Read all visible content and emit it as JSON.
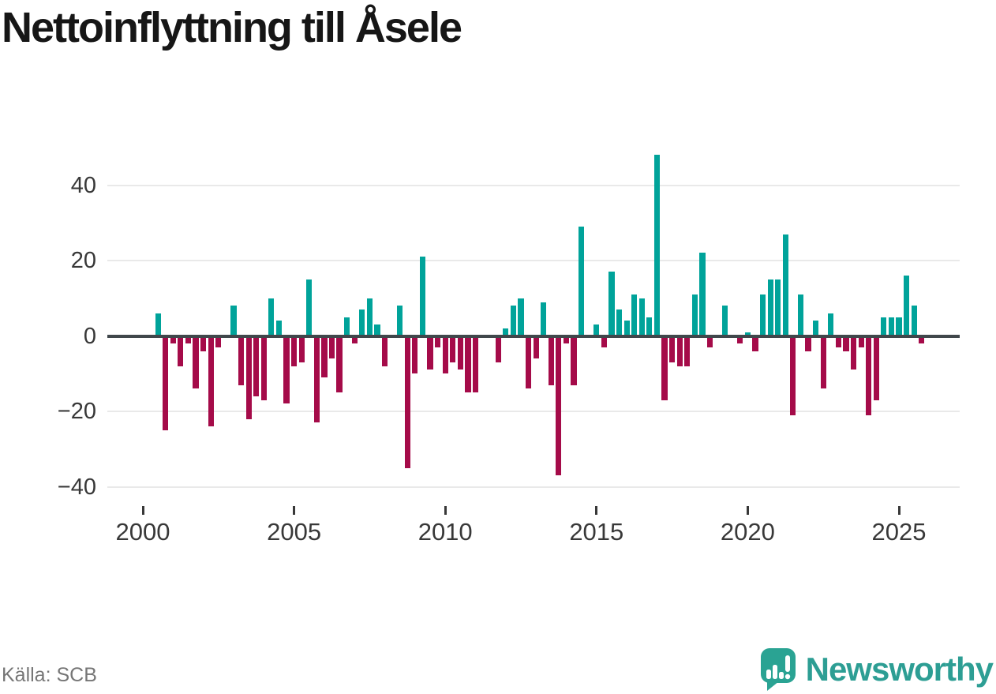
{
  "title": "Nettoinflyttning till Åsele",
  "source": "Källa: SCB",
  "brand": {
    "name": "Newsworthy"
  },
  "colors": {
    "positive_bar": "#00a39a",
    "negative_bar": "#a50b49",
    "zero_line": "#40474b",
    "gridline": "#e9e9e9",
    "axis_label": "#383838",
    "source_text": "#767676",
    "brand_teal": "#2d9e94",
    "title_text": "#161616",
    "background": "#ffffff"
  },
  "chart_data": {
    "type": "bar",
    "title": "Nettoinflyttning till Åsele",
    "x_start": "2000Q1",
    "frequency": "quarterly",
    "x_tick_labels": [
      "2000",
      "2005",
      "2010",
      "2015",
      "2020",
      "2025"
    ],
    "y_ticks": [
      40,
      20,
      0,
      -20,
      -40
    ],
    "ylim": [
      -45,
      50
    ],
    "grid": "horizontal",
    "legend": "none",
    "values": [
      0,
      0,
      6,
      -25,
      -2,
      -8,
      -2,
      -14,
      -4,
      -24,
      -3,
      0,
      8,
      -13,
      -22,
      -16,
      -17,
      10,
      4,
      -18,
      -8,
      -7,
      15,
      -23,
      -11,
      -6,
      -15,
      5,
      -2,
      7,
      10,
      3,
      -8,
      0,
      8,
      -35,
      -10,
      21,
      -9,
      -3,
      -10,
      -7,
      -9,
      -15,
      -15,
      0,
      0,
      -7,
      2,
      8,
      10,
      -14,
      -6,
      9,
      -13,
      -37,
      -2,
      -13,
      29,
      0,
      3,
      -3,
      17,
      7,
      4,
      11,
      10,
      5,
      48,
      -17,
      -7,
      -8,
      -8,
      11,
      22,
      -3,
      0,
      8,
      0,
      -2,
      1,
      -4,
      11,
      15,
      15,
      27,
      -21,
      11,
      -4,
      4,
      -14,
      6,
      -3,
      -4,
      -9,
      -3,
      -21,
      -17,
      5,
      5,
      5,
      16,
      8,
      -2
    ]
  }
}
